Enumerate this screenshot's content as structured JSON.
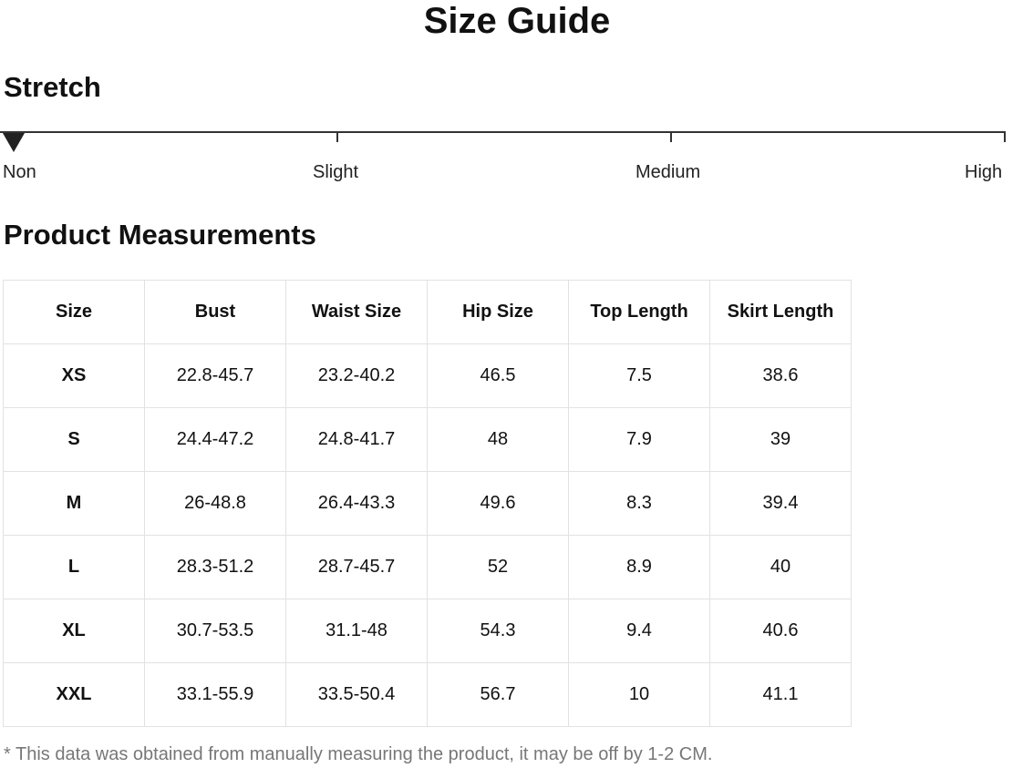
{
  "title": "Size Guide",
  "stretch": {
    "heading": "Stretch",
    "levels": [
      "Non",
      "Slight",
      "Medium",
      "High"
    ],
    "selected": "Non"
  },
  "measurements": {
    "heading": "Product Measurements",
    "columns": [
      "Size",
      "Bust",
      "Waist Size",
      "Hip Size",
      "Top Length",
      "Skirt Length"
    ],
    "rows": [
      [
        "XS",
        "22.8-45.7",
        "23.2-40.2",
        "46.5",
        "7.5",
        "38.6"
      ],
      [
        "S",
        "24.4-47.2",
        "24.8-41.7",
        "48",
        "7.9",
        "39"
      ],
      [
        "M",
        "26-48.8",
        "26.4-43.3",
        "49.6",
        "8.3",
        "39.4"
      ],
      [
        "L",
        "28.3-51.2",
        "28.7-45.7",
        "52",
        "8.9",
        "40"
      ],
      [
        "XL",
        "30.7-53.5",
        "31.1-48",
        "54.3",
        "9.4",
        "40.6"
      ],
      [
        "XXL",
        "33.1-55.9",
        "33.5-50.4",
        "56.7",
        "10",
        "41.1"
      ]
    ]
  },
  "note": "* This data was obtained from manually measuring the product, it may be off by 1-2 CM."
}
